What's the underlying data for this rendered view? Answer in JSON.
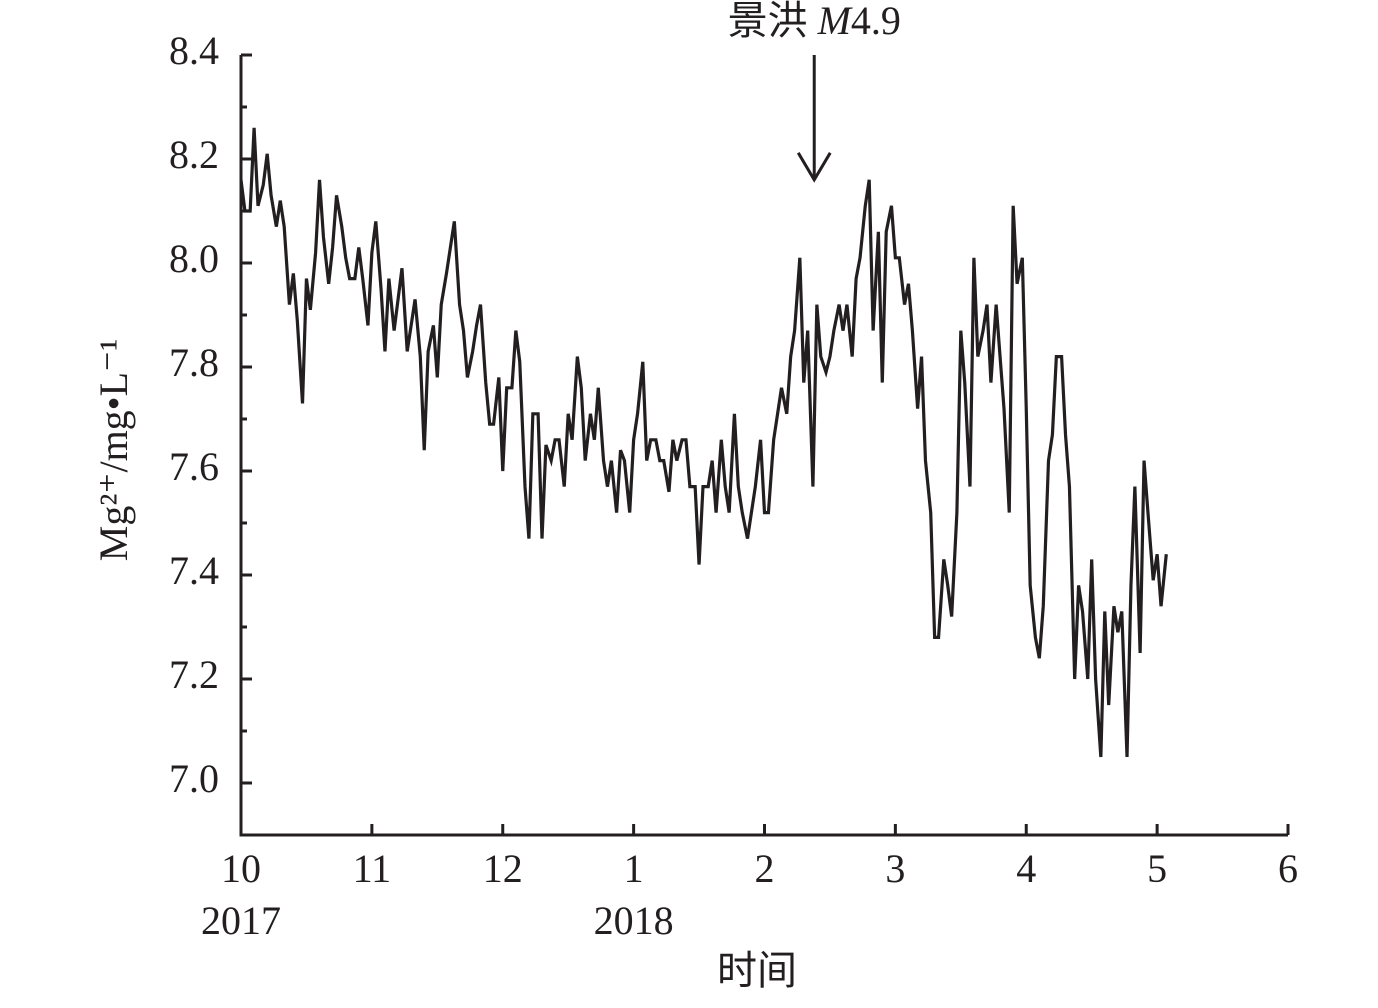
{
  "chart_data": {
    "type": "line",
    "x_label": "时间",
    "y_label": "Mg²⁺/mg•L⁻¹",
    "color": "#231f20",
    "xlim": [
      0,
      8
    ],
    "xticks": [
      {
        "value": 0,
        "label": "10"
      },
      {
        "value": 1,
        "label": "11"
      },
      {
        "value": 2,
        "label": "12"
      },
      {
        "value": 3,
        "label": "1"
      },
      {
        "value": 4,
        "label": "2"
      },
      {
        "value": 5,
        "label": "3"
      },
      {
        "value": 6,
        "label": "4"
      },
      {
        "value": 7,
        "label": "5"
      },
      {
        "value": 8,
        "label": "6"
      }
    ],
    "year_labels": [
      {
        "value": 0,
        "label": "2017"
      },
      {
        "value": 3,
        "label": "2018"
      }
    ],
    "ylim": [
      6.9,
      8.4
    ],
    "yticks": [
      {
        "value": 7,
        "label": "7.0"
      },
      7.2,
      7.4,
      7.6,
      7.8,
      {
        "value": 8,
        "label": "8.0"
      },
      8.2,
      8.4
    ],
    "y_minor_ticks": [
      6.9,
      7.1,
      7.3,
      7.5,
      7.7,
      7.9,
      8.1,
      8.3
    ],
    "annotation": {
      "text_parts": [
        "景洪 ",
        "M",
        "4.9"
      ],
      "x": 4.38,
      "arrow_from": 8.4,
      "arrow_to": 8.16
    },
    "x": [
      0,
      0.03,
      0.07,
      0.1,
      0.13,
      0.17,
      0.2,
      0.23,
      0.27,
      0.3,
      0.33,
      0.37,
      0.4,
      0.43,
      0.47,
      0.5,
      0.53,
      0.57,
      0.6,
      0.63,
      0.67,
      0.7,
      0.73,
      0.77,
      0.8,
      0.83,
      0.87,
      0.9,
      0.93,
      0.97,
      1,
      1.03,
      1.07,
      1.1,
      1.13,
      1.17,
      1.2,
      1.23,
      1.27,
      1.3,
      1.33,
      1.37,
      1.4,
      1.43,
      1.47,
      1.5,
      1.53,
      1.57,
      1.6,
      1.63,
      1.67,
      1.7,
      1.73,
      1.77,
      1.8,
      1.83,
      1.87,
      1.9,
      1.93,
      1.97,
      2,
      2.03,
      2.07,
      2.1,
      2.13,
      2.17,
      2.2,
      2.23,
      2.27,
      2.3,
      2.33,
      2.37,
      2.4,
      2.43,
      2.47,
      2.5,
      2.53,
      2.57,
      2.6,
      2.63,
      2.67,
      2.7,
      2.73,
      2.77,
      2.8,
      2.83,
      2.87,
      2.9,
      2.93,
      2.97,
      3,
      3.03,
      3.07,
      3.1,
      3.13,
      3.17,
      3.2,
      3.23,
      3.27,
      3.3,
      3.33,
      3.37,
      3.4,
      3.43,
      3.47,
      3.5,
      3.53,
      3.57,
      3.6,
      3.63,
      3.67,
      3.7,
      3.73,
      3.77,
      3.8,
      3.83,
      3.87,
      3.9,
      3.93,
      3.97,
      4,
      4.03,
      4.07,
      4.1,
      4.13,
      4.17,
      4.2,
      4.23,
      4.27,
      4.3,
      4.33,
      4.37,
      4.4,
      4.43,
      4.47,
      4.5,
      4.53,
      4.57,
      4.6,
      4.63,
      4.67,
      4.7,
      4.73,
      4.77,
      4.8,
      4.83,
      4.87,
      4.9,
      4.93,
      4.97,
      5,
      5.03,
      5.07,
      5.1,
      5.13,
      5.17,
      5.2,
      5.23,
      5.27,
      5.3,
      5.33,
      5.37,
      5.4,
      5.43,
      5.47,
      5.5,
      5.53,
      5.57,
      5.6,
      5.63,
      5.67,
      5.7,
      5.73,
      5.77,
      5.8,
      5.83,
      5.87,
      5.9,
      5.93,
      5.97,
      6,
      6.03,
      6.07,
      6.1,
      6.13,
      6.17,
      6.2,
      6.23,
      6.27,
      6.3,
      6.33,
      6.37,
      6.4,
      6.43,
      6.47,
      6.5,
      6.53,
      6.57,
      6.6,
      6.63,
      6.67,
      6.7,
      6.73,
      6.77,
      6.8,
      6.83,
      6.87,
      6.9,
      6.93,
      6.97,
      7,
      7.03,
      7.07
    ],
    "values": [
      8.16,
      8.1,
      8.1,
      8.26,
      8.11,
      8.15,
      8.21,
      8.13,
      8.07,
      8.12,
      8.07,
      7.92,
      7.98,
      7.89,
      7.73,
      7.97,
      7.91,
      8.02,
      8.16,
      8.05,
      7.96,
      8.03,
      8.13,
      8.07,
      8.01,
      7.97,
      7.97,
      8.03,
      7.97,
      7.88,
      8.02,
      8.08,
      7.95,
      7.83,
      7.97,
      7.87,
      7.93,
      7.99,
      7.83,
      7.88,
      7.93,
      7.82,
      7.64,
      7.83,
      7.88,
      7.78,
      7.92,
      7.98,
      8.03,
      8.08,
      7.92,
      7.87,
      7.78,
      7.83,
      7.88,
      7.92,
      7.77,
      7.69,
      7.69,
      7.78,
      7.6,
      7.76,
      7.76,
      7.87,
      7.81,
      7.57,
      7.47,
      7.71,
      7.71,
      7.47,
      7.65,
      7.62,
      7.66,
      7.66,
      7.57,
      7.71,
      7.66,
      7.82,
      7.76,
      7.62,
      7.71,
      7.66,
      7.76,
      7.62,
      7.57,
      7.62,
      7.52,
      7.64,
      7.62,
      7.52,
      7.66,
      7.71,
      7.81,
      7.62,
      7.66,
      7.66,
      7.62,
      7.62,
      7.56,
      7.66,
      7.62,
      7.66,
      7.66,
      7.57,
      7.57,
      7.42,
      7.57,
      7.57,
      7.62,
      7.52,
      7.66,
      7.57,
      7.52,
      7.71,
      7.57,
      7.52,
      7.47,
      7.52,
      7.57,
      7.66,
      7.52,
      7.52,
      7.66,
      7.71,
      7.76,
      7.71,
      7.82,
      7.87,
      8.01,
      7.77,
      7.87,
      7.57,
      7.92,
      7.82,
      7.79,
      7.82,
      7.87,
      7.92,
      7.87,
      7.92,
      7.82,
      7.97,
      8.01,
      8.11,
      8.16,
      7.87,
      8.06,
      7.77,
      8.06,
      8.11,
      8.01,
      8.01,
      7.92,
      7.96,
      7.87,
      7.72,
      7.82,
      7.62,
      7.52,
      7.28,
      7.28,
      7.43,
      7.38,
      7.32,
      7.52,
      7.87,
      7.77,
      7.57,
      8.01,
      7.82,
      7.87,
      7.92,
      7.77,
      7.92,
      7.82,
      7.72,
      7.52,
      8.11,
      7.96,
      8.01,
      7.72,
      7.38,
      7.28,
      7.24,
      7.34,
      7.62,
      7.67,
      7.82,
      7.82,
      7.67,
      7.57,
      7.2,
      7.38,
      7.33,
      7.2,
      7.43,
      7.2,
      7.05,
      7.33,
      7.15,
      7.34,
      7.29,
      7.33,
      7.05,
      7.38,
      7.57,
      7.25,
      7.62,
      7.52,
      7.39,
      7.44,
      7.34,
      7.44
    ]
  }
}
